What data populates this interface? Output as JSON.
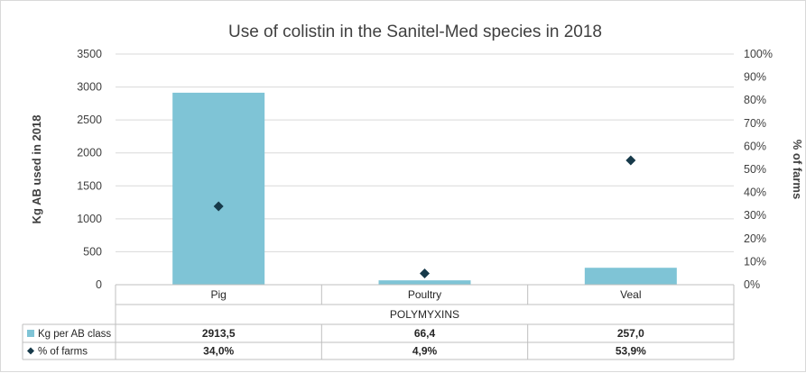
{
  "chart_data": {
    "type": "bar",
    "title": "Use of colistin in the Sanitel-Med species in 2018",
    "categories": [
      "Pig",
      "Poultry",
      "Veal"
    ],
    "group_label": "POLYMYXINS",
    "ylabel": "Kg AB used in 2018",
    "y2label": "% of farms",
    "ylim": [
      0,
      3500
    ],
    "y2lim": [
      0,
      100
    ],
    "y_ticks": [
      "0",
      "500",
      "1000",
      "1500",
      "2000",
      "2500",
      "3000",
      "3500"
    ],
    "y2_ticks": [
      "0%",
      "10%",
      "20%",
      "30%",
      "40%",
      "50%",
      "60%",
      "70%",
      "80%",
      "90%",
      "100%"
    ],
    "grid": true,
    "legend_placement": "data-table-rows",
    "series": [
      {
        "name": "Kg per AB class",
        "kind": "bar",
        "axis": "left",
        "color": "#7fc4d6",
        "values": [
          2913.5,
          66.4,
          257.0
        ],
        "labels": [
          "2913,5",
          "66,4",
          "257,0"
        ]
      },
      {
        "name": "% of farms",
        "kind": "marker",
        "marker": "diamond",
        "axis": "right",
        "color": "#173a4a",
        "values": [
          34.0,
          4.9,
          53.9
        ],
        "labels": [
          "34,0%",
          "4,9%",
          "53,9%"
        ]
      }
    ]
  }
}
